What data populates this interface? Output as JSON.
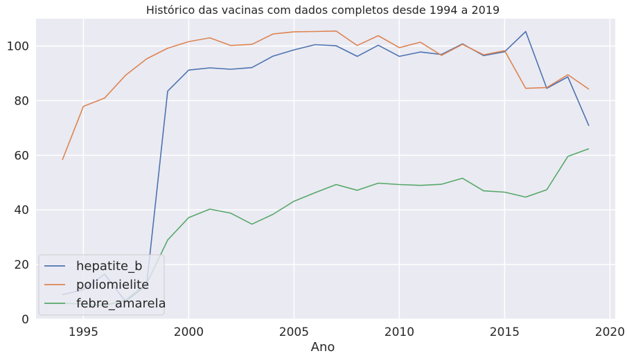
{
  "chart_data": {
    "type": "line",
    "title": "Histórico das vacinas com dados completos desde 1994 a 2019",
    "xlabel": "Ano",
    "ylabel": "",
    "xlim": [
      1992.75,
      2020.25
    ],
    "ylim": [
      0,
      110
    ],
    "grid": true,
    "legend_position": "lower-left",
    "x_ticks": [
      1995,
      2000,
      2005,
      2010,
      2015,
      2020
    ],
    "y_ticks": [
      0,
      20,
      40,
      60,
      80,
      100
    ],
    "x": [
      1994,
      1995,
      1996,
      1997,
      1998,
      1999,
      2000,
      2001,
      2002,
      2003,
      2004,
      2005,
      2006,
      2007,
      2008,
      2009,
      2010,
      2011,
      2012,
      2013,
      2014,
      2015,
      2016,
      2017,
      2018,
      2019
    ],
    "series": [
      {
        "name": "hepatite_b",
        "color": "#4c72b0",
        "values": [
          9.0,
          10.8,
          16.5,
          6.5,
          12.5,
          83.5,
          91.2,
          92.0,
          91.5,
          92.1,
          96.3,
          98.6,
          100.5,
          100.1,
          96.2,
          100.3,
          96.2,
          97.8,
          96.9,
          100.8,
          96.5,
          97.9,
          105.3,
          84.5,
          88.7,
          70.8
        ]
      },
      {
        "name": "poliomielite",
        "color": "#dd8452",
        "values": [
          58.3,
          77.9,
          80.9,
          89.3,
          95.3,
          99.2,
          101.6,
          103.0,
          100.2,
          100.6,
          104.4,
          105.2,
          105.3,
          105.5,
          100.2,
          103.8,
          99.4,
          101.4,
          96.6,
          100.6,
          96.8,
          98.3,
          84.5,
          84.8,
          89.5,
          84.2
        ]
      },
      {
        "name": "febre_amarela",
        "color": "#55a868",
        "values": [
          5.8,
          5.6,
          5.0,
          7.0,
          13.0,
          29.0,
          37.2,
          40.3,
          38.8,
          34.8,
          38.4,
          43.2,
          46.3,
          49.3,
          47.2,
          49.8,
          49.3,
          49.0,
          49.4,
          51.6,
          47.0,
          46.5,
          44.7,
          47.4,
          59.6,
          62.4
        ]
      }
    ]
  }
}
